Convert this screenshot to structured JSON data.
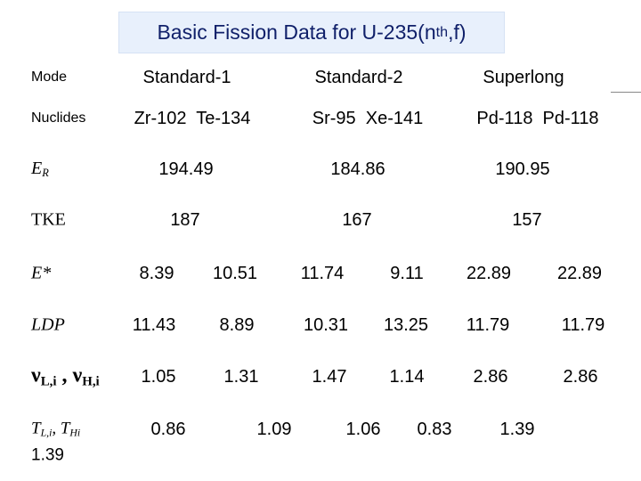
{
  "title": {
    "text": "Basic Fission Data for U-235(n",
    "sub": "th",
    "tail": ",f)"
  },
  "table": {
    "rows": [
      {
        "label": [
          "Mode"
        ],
        "cells": [
          "Standard-1",
          "Standard-2",
          "Superlong"
        ]
      },
      {
        "label": [
          "Nuclides"
        ],
        "cells": [
          "Zr-102  Te-134",
          "Sr-95  Xe-141",
          "Pd-118  Pd-118"
        ]
      },
      {
        "label": [
          "E",
          "R"
        ],
        "cells": [
          "194.49",
          "184.86",
          "190.95"
        ]
      },
      {
        "label": [
          "TKE"
        ],
        "cells": [
          "187",
          "167",
          "157"
        ]
      },
      {
        "label": [
          "E*"
        ],
        "cells": [
          "8.39",
          "10.51",
          "11.74",
          "9.11",
          "22.89",
          "22.89"
        ]
      },
      {
        "label": [
          "LDP"
        ],
        "cells": [
          "11.43",
          "8.89",
          "10.31",
          "13.25",
          "11.79",
          "11.79"
        ]
      },
      {
        "label": [
          "ν",
          "L,i",
          " , ν",
          "H,i"
        ],
        "cells": [
          "1.05",
          "1.31",
          "1.47",
          "1.14",
          "2.86",
          "2.86"
        ]
      },
      {
        "label": [
          "T",
          "L,i",
          ", T",
          "Hi"
        ],
        "cells": [
          "0.86",
          "1.09",
          "1.06",
          "0.83",
          "1.39"
        ],
        "overflow": "1.39"
      }
    ]
  }
}
